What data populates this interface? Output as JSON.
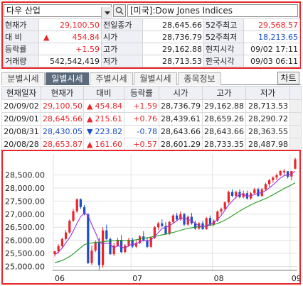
{
  "search": {
    "name": "다우 산업",
    "index_name": "[미국]:Dow Jones Indices"
  },
  "quote": {
    "rows": [
      {
        "l1": "현재가",
        "v1": "29,100.50",
        "c1": "up",
        "l2": "전일종가",
        "v2": "28,645.66",
        "c2": "blk",
        "l3": "52주최고",
        "v3": "29,568.57",
        "c3": "up"
      },
      {
        "l1": "대 비",
        "v1": "454.84",
        "c1": "up",
        "arrow": "▲",
        "l2": "시가",
        "v2": "28,736.79",
        "c2": "blk",
        "l3": "52주최저",
        "v3": "18,213.65",
        "c3": "dn"
      },
      {
        "l1": "등락률",
        "v1": "+1.59",
        "c1": "up",
        "l2": "고가",
        "v2": "29,162.88",
        "c2": "blk",
        "l3": "현지시각",
        "v3": "09/02 17:11",
        "c3": "blk"
      },
      {
        "l1": "거래량",
        "v1": "542,542,419",
        "c1": "blk",
        "l2": "저가",
        "v2": "28,713.53",
        "c2": "blk",
        "l3": "한국시각",
        "v3": "09/03 06:11",
        "c3": "blk"
      }
    ]
  },
  "tabs": {
    "items": [
      "분별시세",
      "일별시세",
      "주별시세",
      "월별시세",
      "종목정보"
    ],
    "active": 1,
    "chart_button": "차트"
  },
  "daily": {
    "headers": [
      "현재일자",
      "현재가",
      "대비",
      "등락률",
      "시가",
      "고가",
      "저가"
    ],
    "rows": [
      {
        "date": "20/09/02",
        "price": "29,100.50",
        "arrow": "▲",
        "change": "454.84",
        "rate": "+1.59",
        "open": "28,736.79",
        "high": "29,162.88",
        "low": "28,713.53",
        "color": "up"
      },
      {
        "date": "20/09/01",
        "price": "28,645.66",
        "arrow": "▲",
        "change": "215.61",
        "rate": "+0.76",
        "open": "28,439.61",
        "high": "28,659.26",
        "low": "28,290.72",
        "color": "up"
      },
      {
        "date": "20/08/31",
        "price": "28,430.05",
        "arrow": "▼",
        "change": "223.82",
        "rate": "-0.78",
        "open": "28,643.66",
        "high": "28,643.66",
        "low": "28,363.55",
        "color": "dn"
      },
      {
        "date": "20/08/28",
        "price": "28,653.87",
        "arrow": "▲",
        "change": "161.60",
        "rate": "+0.57",
        "open": "28,601.29",
        "high": "28,733.35",
        "low": "28,487.98",
        "color": "up"
      }
    ]
  },
  "chart_data": {
    "type": "candlestick",
    "y_ticks": [
      "28,500.00",
      "28,000.00",
      "27,500.00",
      "27,000.00",
      "26,500.00",
      "26,000.00",
      "25,500.00",
      "25,000.00"
    ],
    "y_tick_values": [
      28500,
      28000,
      27500,
      27000,
      26500,
      26000,
      25500,
      25000
    ],
    "ylim": [
      24850,
      29300
    ],
    "x_labels": [
      "06",
      "07",
      "08",
      "09"
    ],
    "x_label_index": [
      0,
      21,
      43,
      64
    ],
    "colors": {
      "up": "#e8262b",
      "down": "#1a4fc7",
      "ma_short": "#9b30d9",
      "ma_long": "#1e9a1e"
    },
    "ohlc": [
      [
        25475,
        25600,
        25380,
        25580
      ],
      [
        25580,
        25850,
        25500,
        25780
      ],
      [
        25780,
        26100,
        25700,
        26050
      ],
      [
        26050,
        26400,
        26000,
        26300
      ],
      [
        26300,
        26800,
        26250,
        26750
      ],
      [
        26750,
        27200,
        26700,
        27110
      ],
      [
        27110,
        27600,
        27050,
        27570
      ],
      [
        27570,
        27600,
        27200,
        27270
      ],
      [
        27270,
        27350,
        26950,
        26990
      ],
      [
        26990,
        27050,
        25100,
        25130
      ],
      [
        25130,
        25800,
        25050,
        25610
      ],
      [
        25610,
        26000,
        25550,
        25920
      ],
      [
        25920,
        26100,
        24880,
        25050
      ],
      [
        25050,
        26500,
        24950,
        26380
      ],
      [
        26380,
        26600,
        26000,
        26050
      ],
      [
        26050,
        26100,
        25450,
        25470
      ],
      [
        25470,
        25900,
        25400,
        25800
      ],
      [
        25800,
        26100,
        25750,
        26010
      ],
      [
        26010,
        26200,
        25500,
        25550
      ],
      [
        25550,
        25850,
        25500,
        25800
      ],
      [
        25800,
        26100,
        25750,
        26020
      ],
      [
        26020,
        26100,
        25700,
        25760
      ],
      [
        25760,
        26000,
        25700,
        25900
      ],
      [
        25900,
        26200,
        25850,
        26150
      ],
      [
        26150,
        26350,
        25950,
        26000
      ],
      [
        26000,
        26100,
        25700,
        25750
      ],
      [
        25750,
        26150,
        25700,
        26100
      ],
      [
        26100,
        26550,
        26050,
        26500
      ],
      [
        26500,
        26700,
        26400,
        26650
      ],
      [
        26650,
        26800,
        26500,
        26550
      ],
      [
        26550,
        26700,
        26200,
        26250
      ],
      [
        26250,
        26750,
        26200,
        26700
      ],
      [
        26700,
        27000,
        26650,
        26950
      ],
      [
        26950,
        27050,
        26750,
        26800
      ],
      [
        26800,
        27100,
        26750,
        27000
      ],
      [
        27000,
        27050,
        26550,
        26600
      ],
      [
        26600,
        26950,
        26550,
        26900
      ],
      [
        26900,
        27050,
        26600,
        26650
      ],
      [
        26650,
        26750,
        26400,
        26450
      ],
      [
        26450,
        26700,
        26400,
        26650
      ],
      [
        26650,
        26750,
        26400,
        26430
      ],
      [
        26430,
        26900,
        26400,
        26850
      ],
      [
        26850,
        26950,
        26550,
        26600
      ],
      [
        26600,
        26800,
        26550,
        26750
      ],
      [
        26750,
        27150,
        26700,
        27100
      ],
      [
        27100,
        27250,
        27000,
        27200
      ],
      [
        27200,
        27500,
        27150,
        27450
      ],
      [
        27450,
        27900,
        27400,
        27850
      ],
      [
        27850,
        27950,
        27650,
        27700
      ],
      [
        27700,
        27900,
        27600,
        27850
      ],
      [
        27850,
        27950,
        27600,
        27650
      ],
      [
        27650,
        27900,
        27600,
        27800
      ],
      [
        27800,
        27900,
        27550,
        27600
      ],
      [
        27600,
        27850,
        27550,
        27800
      ],
      [
        27800,
        28000,
        27750,
        27950
      ],
      [
        27950,
        28000,
        27650,
        27700
      ],
      [
        27700,
        28000,
        27650,
        27950
      ],
      [
        27950,
        28200,
        27900,
        28150
      ],
      [
        28150,
        28350,
        28050,
        28300
      ],
      [
        28300,
        28450,
        28200,
        28400
      ],
      [
        28400,
        28550,
        28300,
        28490
      ],
      [
        28490,
        28680,
        28450,
        28650
      ],
      [
        28601,
        28733,
        28488,
        28654
      ],
      [
        28644,
        28644,
        28364,
        28430
      ],
      [
        28440,
        28659,
        28291,
        28646
      ],
      [
        28737,
        29163,
        28714,
        29101
      ]
    ],
    "ma_short": [
      25450,
      25550,
      25700,
      25900,
      26100,
      26350,
      26650,
      26900,
      27050,
      26950,
      26600,
      26300,
      25950,
      25850,
      25900,
      25850,
      25700,
      25800,
      25750,
      25700,
      25800,
      25850,
      25850,
      25950,
      26000,
      25980,
      26000,
      26150,
      26300,
      26450,
      26500,
      26550,
      26650,
      26750,
      26850,
      26850,
      26800,
      26750,
      26650,
      26550,
      26520,
      26550,
      26620,
      26680,
      26800,
      26950,
      27150,
      27350,
      27500,
      27650,
      27750,
      27750,
      27700,
      27700,
      27750,
      27800,
      27820,
      27900,
      28000,
      28120,
      28250,
      28380,
      28470,
      28500,
      28530,
      28650
    ],
    "ma_long": [
      25150,
      25180,
      25230,
      25300,
      25380,
      25480,
      25600,
      25720,
      25830,
      25880,
      25900,
      25920,
      25930,
      25940,
      25960,
      25980,
      25990,
      26000,
      26000,
      25990,
      25990,
      26000,
      26020,
      26050,
      26080,
      26100,
      26120,
      26150,
      26180,
      26210,
      26240,
      26270,
      26300,
      26340,
      26380,
      26420,
      26450,
      26480,
      26500,
      26520,
      26530,
      26550,
      26570,
      26600,
      26640,
      26700,
      26770,
      26850,
      26940,
      27030,
      27120,
      27200,
      27280,
      27350,
      27420,
      27480,
      27540,
      27600,
      27670,
      27740,
      27820,
      27900,
      27980,
      28050,
      28120,
      28200
    ]
  }
}
